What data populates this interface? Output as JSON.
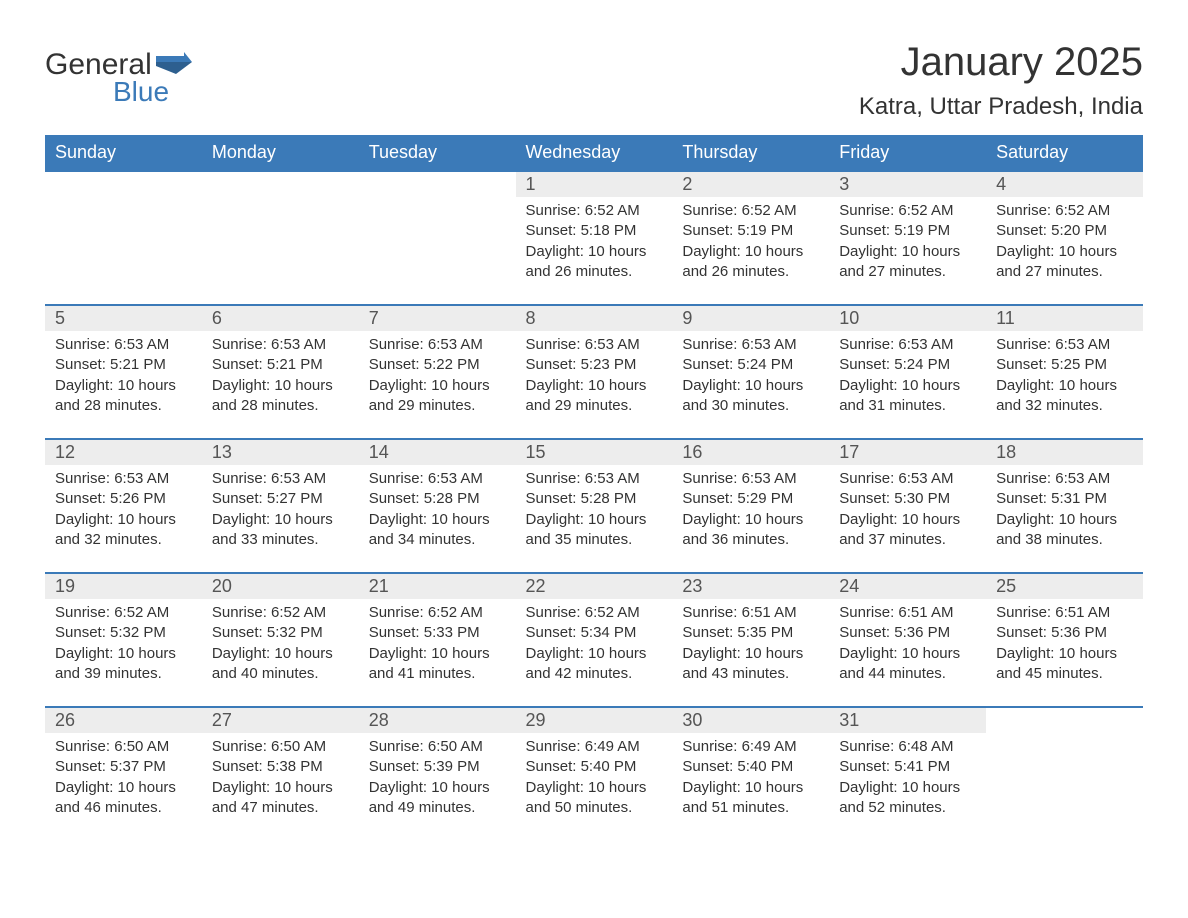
{
  "logo": {
    "general": "General",
    "blue": "Blue",
    "flag_color": "#3b7ab8"
  },
  "title": "January 2025",
  "location": "Katra, Uttar Pradesh, India",
  "colors": {
    "header_bg": "#3b7ab8",
    "header_text": "#ffffff",
    "daynum_bg": "#ededed",
    "border": "#3b7ab8",
    "body_text": "#333333",
    "daynum_text": "#555555",
    "page_bg": "#ffffff"
  },
  "typography": {
    "title_fontsize": 40,
    "location_fontsize": 24,
    "weekday_fontsize": 18,
    "daynum_fontsize": 18,
    "cell_fontsize": 15
  },
  "weekdays": [
    "Sunday",
    "Monday",
    "Tuesday",
    "Wednesday",
    "Thursday",
    "Friday",
    "Saturday"
  ],
  "weeks": [
    [
      null,
      null,
      null,
      {
        "n": "1",
        "sunrise": "6:52 AM",
        "sunset": "5:18 PM",
        "dh": "10",
        "dm": "26"
      },
      {
        "n": "2",
        "sunrise": "6:52 AM",
        "sunset": "5:19 PM",
        "dh": "10",
        "dm": "26"
      },
      {
        "n": "3",
        "sunrise": "6:52 AM",
        "sunset": "5:19 PM",
        "dh": "10",
        "dm": "27"
      },
      {
        "n": "4",
        "sunrise": "6:52 AM",
        "sunset": "5:20 PM",
        "dh": "10",
        "dm": "27"
      }
    ],
    [
      {
        "n": "5",
        "sunrise": "6:53 AM",
        "sunset": "5:21 PM",
        "dh": "10",
        "dm": "28"
      },
      {
        "n": "6",
        "sunrise": "6:53 AM",
        "sunset": "5:21 PM",
        "dh": "10",
        "dm": "28"
      },
      {
        "n": "7",
        "sunrise": "6:53 AM",
        "sunset": "5:22 PM",
        "dh": "10",
        "dm": "29"
      },
      {
        "n": "8",
        "sunrise": "6:53 AM",
        "sunset": "5:23 PM",
        "dh": "10",
        "dm": "29"
      },
      {
        "n": "9",
        "sunrise": "6:53 AM",
        "sunset": "5:24 PM",
        "dh": "10",
        "dm": "30"
      },
      {
        "n": "10",
        "sunrise": "6:53 AM",
        "sunset": "5:24 PM",
        "dh": "10",
        "dm": "31"
      },
      {
        "n": "11",
        "sunrise": "6:53 AM",
        "sunset": "5:25 PM",
        "dh": "10",
        "dm": "32"
      }
    ],
    [
      {
        "n": "12",
        "sunrise": "6:53 AM",
        "sunset": "5:26 PM",
        "dh": "10",
        "dm": "32"
      },
      {
        "n": "13",
        "sunrise": "6:53 AM",
        "sunset": "5:27 PM",
        "dh": "10",
        "dm": "33"
      },
      {
        "n": "14",
        "sunrise": "6:53 AM",
        "sunset": "5:28 PM",
        "dh": "10",
        "dm": "34"
      },
      {
        "n": "15",
        "sunrise": "6:53 AM",
        "sunset": "5:28 PM",
        "dh": "10",
        "dm": "35"
      },
      {
        "n": "16",
        "sunrise": "6:53 AM",
        "sunset": "5:29 PM",
        "dh": "10",
        "dm": "36"
      },
      {
        "n": "17",
        "sunrise": "6:53 AM",
        "sunset": "5:30 PM",
        "dh": "10",
        "dm": "37"
      },
      {
        "n": "18",
        "sunrise": "6:53 AM",
        "sunset": "5:31 PM",
        "dh": "10",
        "dm": "38"
      }
    ],
    [
      {
        "n": "19",
        "sunrise": "6:52 AM",
        "sunset": "5:32 PM",
        "dh": "10",
        "dm": "39"
      },
      {
        "n": "20",
        "sunrise": "6:52 AM",
        "sunset": "5:32 PM",
        "dh": "10",
        "dm": "40"
      },
      {
        "n": "21",
        "sunrise": "6:52 AM",
        "sunset": "5:33 PM",
        "dh": "10",
        "dm": "41"
      },
      {
        "n": "22",
        "sunrise": "6:52 AM",
        "sunset": "5:34 PM",
        "dh": "10",
        "dm": "42"
      },
      {
        "n": "23",
        "sunrise": "6:51 AM",
        "sunset": "5:35 PM",
        "dh": "10",
        "dm": "43"
      },
      {
        "n": "24",
        "sunrise": "6:51 AM",
        "sunset": "5:36 PM",
        "dh": "10",
        "dm": "44"
      },
      {
        "n": "25",
        "sunrise": "6:51 AM",
        "sunset": "5:36 PM",
        "dh": "10",
        "dm": "45"
      }
    ],
    [
      {
        "n": "26",
        "sunrise": "6:50 AM",
        "sunset": "5:37 PM",
        "dh": "10",
        "dm": "46"
      },
      {
        "n": "27",
        "sunrise": "6:50 AM",
        "sunset": "5:38 PM",
        "dh": "10",
        "dm": "47"
      },
      {
        "n": "28",
        "sunrise": "6:50 AM",
        "sunset": "5:39 PM",
        "dh": "10",
        "dm": "49"
      },
      {
        "n": "29",
        "sunrise": "6:49 AM",
        "sunset": "5:40 PM",
        "dh": "10",
        "dm": "50"
      },
      {
        "n": "30",
        "sunrise": "6:49 AM",
        "sunset": "5:40 PM",
        "dh": "10",
        "dm": "51"
      },
      {
        "n": "31",
        "sunrise": "6:48 AM",
        "sunset": "5:41 PM",
        "dh": "10",
        "dm": "52"
      },
      null
    ]
  ],
  "labels": {
    "sunrise": "Sunrise: ",
    "sunset": "Sunset: ",
    "daylight_prefix": "Daylight: ",
    "hours_word": " hours",
    "and_word": "and ",
    "minutes_word": " minutes."
  }
}
